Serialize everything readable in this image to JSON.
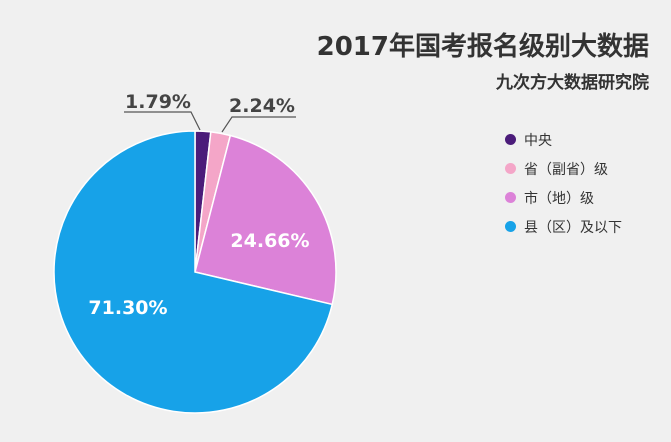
{
  "chart_data": {
    "type": "pie",
    "title": "2017年国考报名级别大数据",
    "subtitle": "九次方大数据研究院",
    "legend_position": "right",
    "slices": [
      {
        "name": "中央",
        "value": 1.79,
        "label": "1.79%",
        "color": "#4b1c7a"
      },
      {
        "name": "省（副省）级",
        "value": 2.24,
        "label": "2.24%",
        "color": "#f4a6c8"
      },
      {
        "name": "市（地）级",
        "value": 24.66,
        "label": "24.66%",
        "color": "#dc82d8"
      },
      {
        "name": "县（区）及以下",
        "value": 71.3,
        "label": "71.30%",
        "color": "#17a2e8"
      }
    ]
  }
}
